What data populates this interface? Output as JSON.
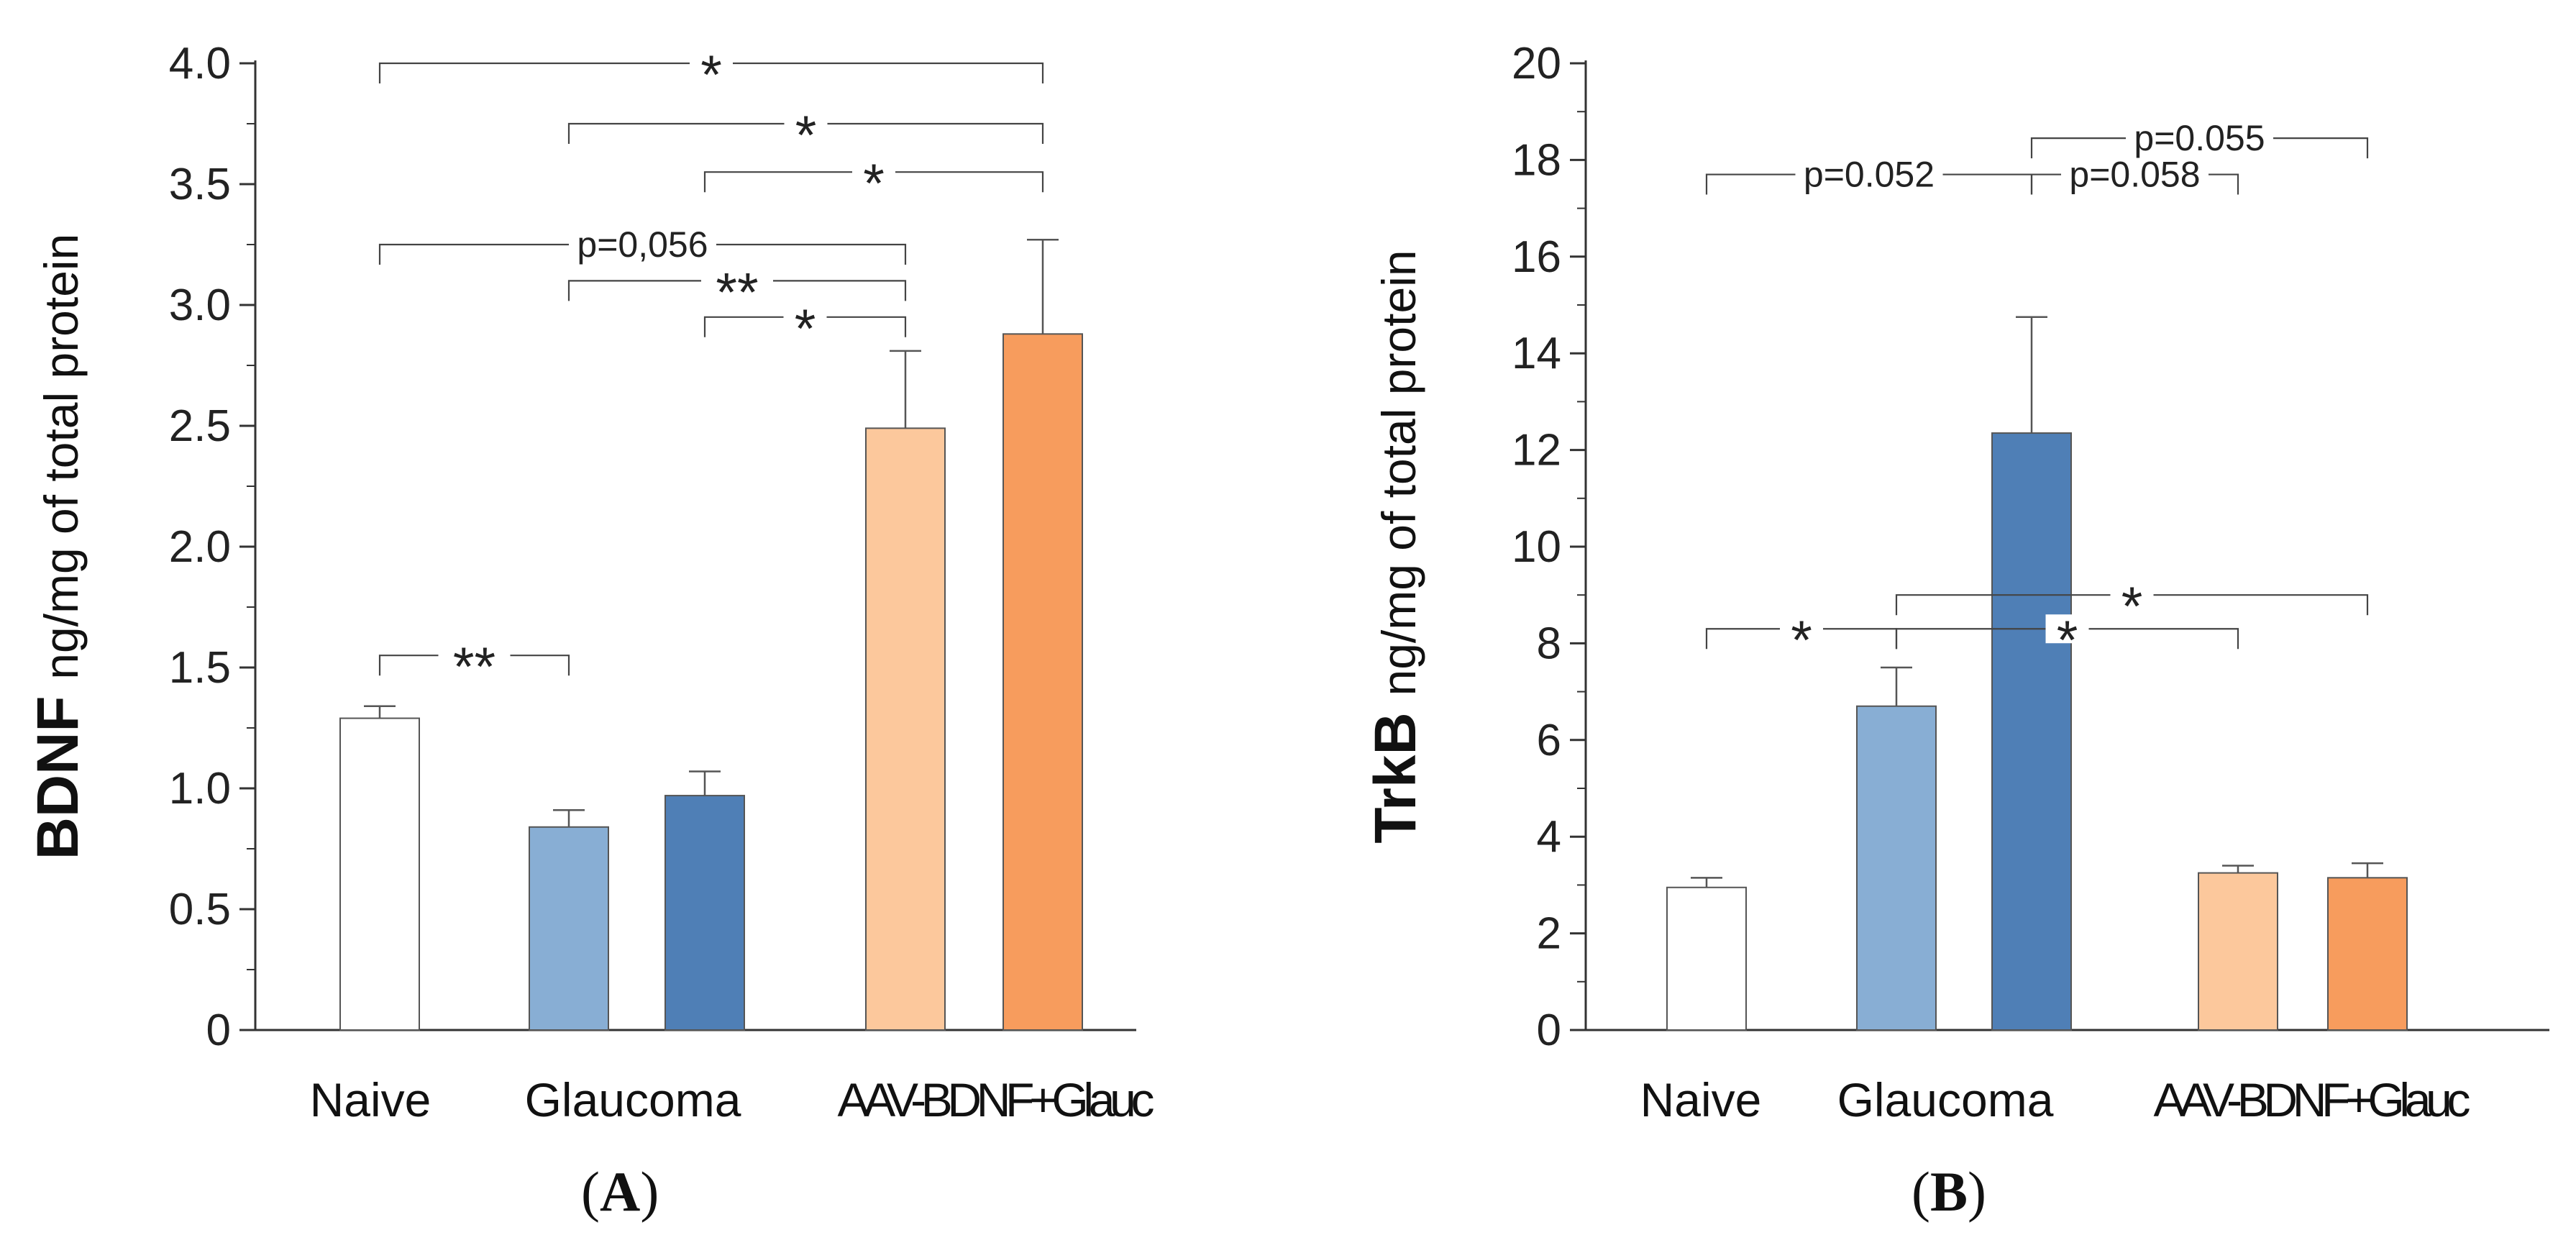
{
  "chart_data": [
    {
      "type": "bar",
      "panel_label": "A",
      "ylabel_bold": "BDNF",
      "ylabel": "ng/mg of total protein",
      "ylim": [
        0,
        4.0
      ],
      "yticks": [
        "0",
        "0.5",
        "1.0",
        "1.5",
        "2.0",
        "2.5",
        "3.0",
        "3.5",
        "4.0"
      ],
      "group_labels": [
        "Naive",
        "Glaucoma",
        "AAV-BDNF+Glauc"
      ],
      "bars": [
        {
          "value": 1.29,
          "error": 0.05,
          "color": "#ffffff"
        },
        {
          "value": 0.84,
          "error": 0.07,
          "color": "#88aed4"
        },
        {
          "value": 0.97,
          "error": 0.1,
          "color": "#4f7fb6"
        },
        {
          "value": 2.49,
          "error": 0.32,
          "color": "#fcc89c"
        },
        {
          "value": 2.88,
          "error": 0.39,
          "color": "#f79c5d"
        }
      ],
      "comparisons": [
        {
          "from": 0,
          "to": 4,
          "level": 4.0,
          "label": "*"
        },
        {
          "from": 1,
          "to": 4,
          "level": 3.75,
          "label": "*"
        },
        {
          "from": 2,
          "to": 4,
          "level": 3.55,
          "label": "*"
        },
        {
          "from": 0,
          "to": 3,
          "level": 3.25,
          "label": "p=0,056"
        },
        {
          "from": 1,
          "to": 3,
          "level": 3.1,
          "label": "**"
        },
        {
          "from": 2,
          "to": 3,
          "level": 2.95,
          "label": "*"
        },
        {
          "from": 0,
          "to": 1,
          "level": 1.55,
          "label": "**"
        }
      ]
    },
    {
      "type": "bar",
      "panel_label": "B",
      "ylabel_bold": "TrkB",
      "ylabel": "ng/mg of total protein",
      "ylim": [
        0,
        20
      ],
      "yticks": [
        "0",
        "2",
        "4",
        "6",
        "8",
        "10",
        "12",
        "14",
        "16",
        "18",
        "20"
      ],
      "group_labels": [
        "Naive",
        "Glaucoma",
        "AAV-BDNF+Glauc"
      ],
      "bars": [
        {
          "value": 2.95,
          "error": 0.2,
          "color": "#ffffff"
        },
        {
          "value": 6.7,
          "error": 0.8,
          "color": "#88aed4"
        },
        {
          "value": 12.35,
          "error": 2.4,
          "color": "#4f7fb6"
        },
        {
          "value": 3.25,
          "error": 0.15,
          "color": "#fcc89c"
        },
        {
          "value": 3.15,
          "error": 0.3,
          "color": "#f79c5d"
        }
      ],
      "comparisons": [
        {
          "from": 0,
          "to": 2,
          "level": 17.7,
          "label": "p=0.052"
        },
        {
          "from": 2,
          "to": 4,
          "level": 18.45,
          "label": "p=0.055"
        },
        {
          "from": 2,
          "to": 3,
          "level": 17.7,
          "label": "p=0.058"
        },
        {
          "from": 0,
          "to": 1,
          "level": 8.3,
          "label": "*"
        },
        {
          "from": 1,
          "to": 4,
          "level": 9.0,
          "label": "*"
        },
        {
          "from": 1,
          "to": 3,
          "level": 8.3,
          "label": "*"
        }
      ]
    }
  ]
}
